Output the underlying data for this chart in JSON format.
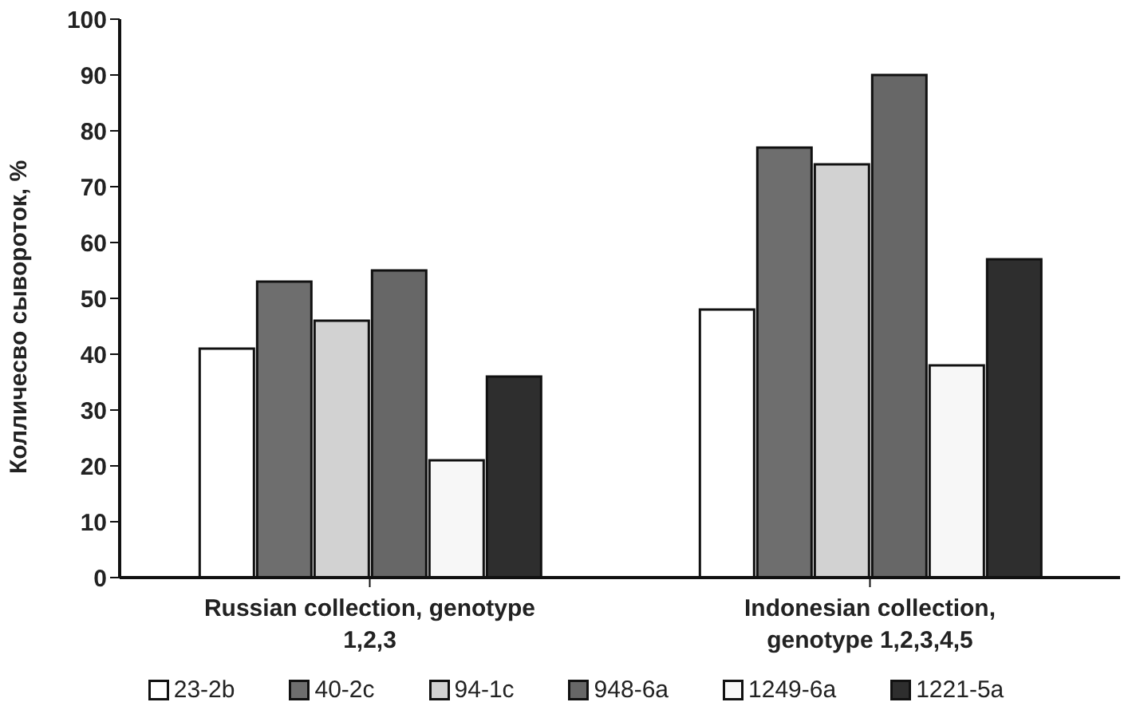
{
  "chart_data": {
    "type": "bar",
    "ylabel": "Колличесво сывороток, %",
    "categories": [
      "Russian collection,  genotype 1,2,3",
      "Indonesian collection, genotype 1,2,3,4,5"
    ],
    "series": [
      {
        "name": "23-2b",
        "color": "#ffffff",
        "values": [
          41,
          48
        ]
      },
      {
        "name": "40-2c",
        "color": "#6e6e6e",
        "values": [
          53,
          77
        ]
      },
      {
        "name": "94-1c",
        "color": "#d2d2d2",
        "values": [
          46,
          74
        ]
      },
      {
        "name": "948-6a",
        "color": "#676767",
        "values": [
          55,
          90
        ]
      },
      {
        "name": "1249-6a",
        "color": "#f7f7f7",
        "values": [
          21,
          38
        ]
      },
      {
        "name": "1221-5a",
        "color": "#2e2e2e",
        "values": [
          36,
          57
        ]
      }
    ],
    "ylim": [
      0,
      100
    ],
    "yticks": [
      0,
      10,
      20,
      30,
      40,
      50,
      60,
      70,
      80,
      90,
      100
    ],
    "grid": false,
    "legend": "bottom"
  }
}
